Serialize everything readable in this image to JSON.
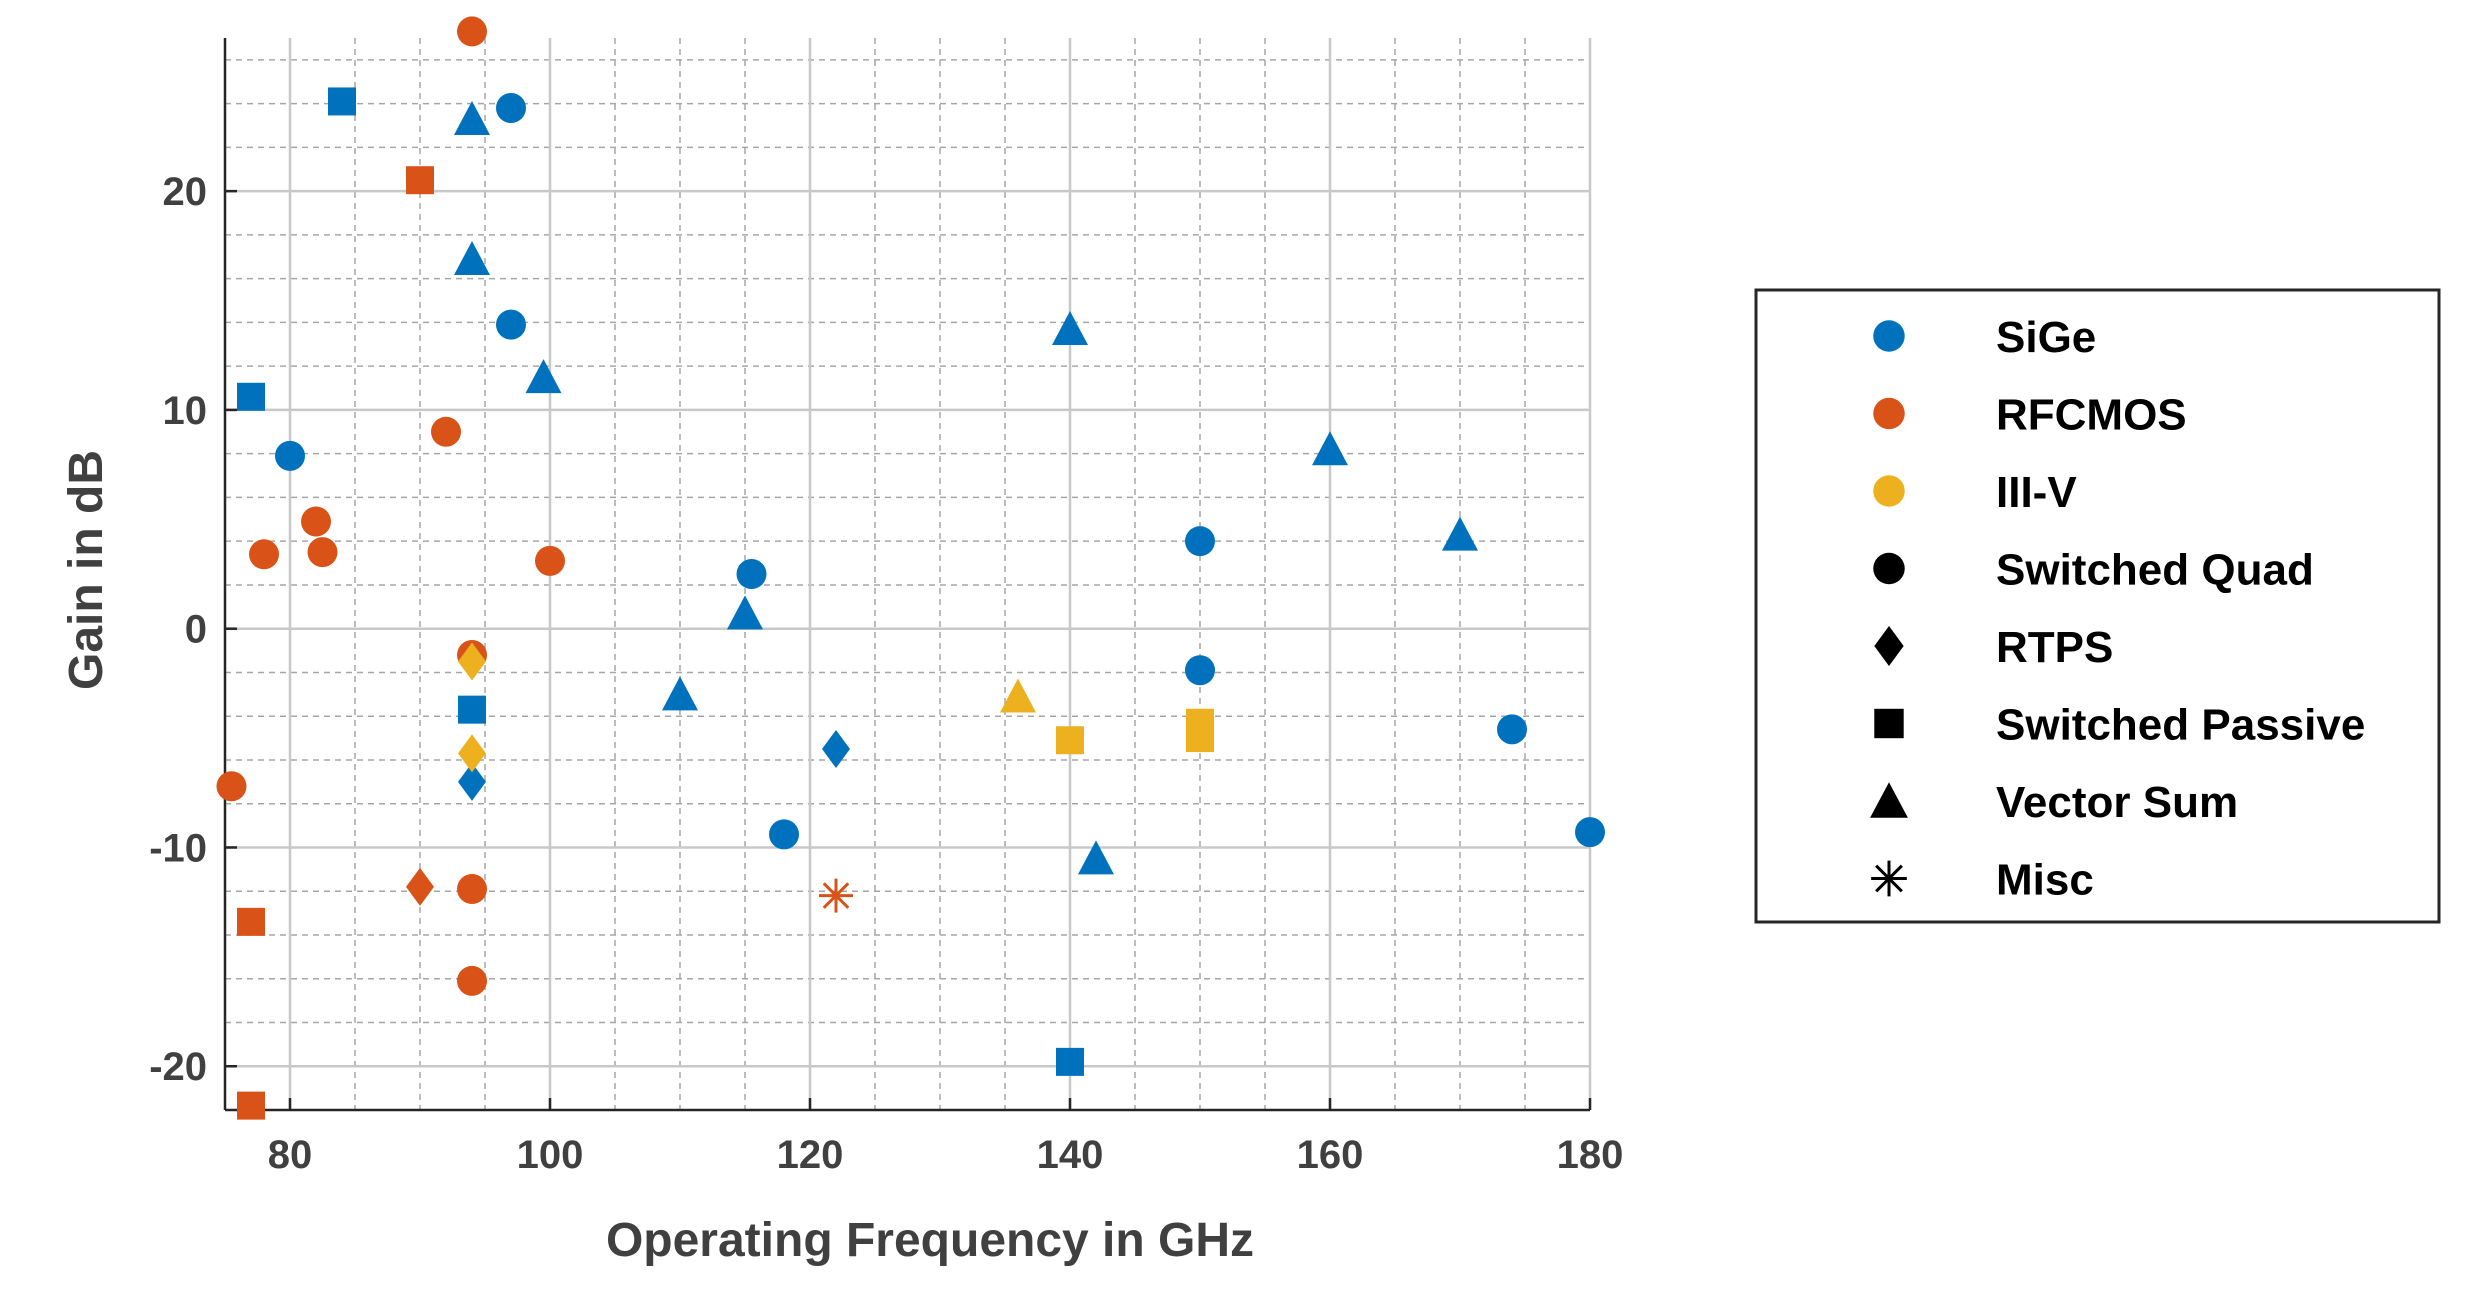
{
  "chart_data": {
    "type": "scatter",
    "xlabel": "Operating Frequency in GHz",
    "ylabel": "Gain in dB",
    "xlim": [
      75,
      180
    ],
    "ylim": [
      -22,
      27
    ],
    "xticks": [
      80,
      100,
      120,
      140,
      160,
      180
    ],
    "yticks": [
      -20,
      -10,
      0,
      10,
      20
    ],
    "xtick_labels": [
      "80",
      "100",
      "120",
      "140",
      "160",
      "180"
    ],
    "ytick_labels": [
      "-20",
      "-10",
      "0",
      "10",
      "20"
    ],
    "grid": true,
    "minor_grid": true,
    "legend_position": "right",
    "colors": {
      "SiGe": "#0072BD",
      "RFCMOS": "#D95319",
      "III-V": "#EDB120"
    },
    "legend": [
      {
        "label": "SiGe",
        "marker": "circle",
        "color": "#0072BD"
      },
      {
        "label": "RFCMOS",
        "marker": "circle",
        "color": "#D95319"
      },
      {
        "label": "III-V",
        "marker": "circle",
        "color": "#EDB120"
      },
      {
        "label": "Switched Quad",
        "marker": "circle",
        "color": "#000000"
      },
      {
        "label": "RTPS",
        "marker": "diamond",
        "color": "#000000"
      },
      {
        "label": "Switched Passive",
        "marker": "square",
        "color": "#000000"
      },
      {
        "label": "Vector Sum",
        "marker": "triangle",
        "color": "#000000"
      },
      {
        "label": "Misc",
        "marker": "asterisk",
        "color": "#000000"
      }
    ],
    "series": [
      {
        "name": "SiGe Switched Quad",
        "tech": "SiGe",
        "marker": "circle",
        "x": [
          97,
          97,
          80,
          115.5,
          118,
          150,
          150,
          174,
          180
        ],
        "y": [
          23.8,
          13.9,
          7.9,
          2.5,
          -9.4,
          4.0,
          -1.9,
          -4.6,
          -9.3
        ]
      },
      {
        "name": "SiGe RTPS",
        "tech": "SiGe",
        "marker": "diamond",
        "x": [
          94,
          122
        ],
        "y": [
          -7.0,
          -5.5
        ]
      },
      {
        "name": "SiGe Switched Passive",
        "tech": "SiGe",
        "marker": "square",
        "x": [
          84,
          77,
          94,
          140
        ],
        "y": [
          24.1,
          10.6,
          -3.7,
          -19.8
        ]
      },
      {
        "name": "SiGe Vector Sum",
        "tech": "SiGe",
        "marker": "triangle",
        "x": [
          94,
          94,
          99.5,
          140,
          160,
          170,
          115,
          110,
          142
        ],
        "y": [
          23.3,
          16.9,
          11.5,
          13.7,
          8.2,
          4.3,
          0.7,
          -3.0,
          -10.5
        ]
      },
      {
        "name": "RFCMOS Switched Quad",
        "tech": "RFCMOS",
        "marker": "circle",
        "x": [
          94,
          92,
          82,
          78,
          82.5,
          100,
          94,
          75.5,
          94,
          94
        ],
        "y": [
          27.3,
          9.0,
          4.9,
          3.4,
          3.5,
          3.1,
          -1.2,
          -7.2,
          -11.9,
          -16.1
        ]
      },
      {
        "name": "RFCMOS RTPS",
        "tech": "RFCMOS",
        "marker": "diamond",
        "x": [
          90
        ],
        "y": [
          -11.8
        ]
      },
      {
        "name": "RFCMOS Switched Passive",
        "tech": "RFCMOS",
        "marker": "square",
        "x": [
          90,
          77,
          77
        ],
        "y": [
          20.5,
          -13.4,
          -21.8
        ]
      },
      {
        "name": "RFCMOS Misc",
        "tech": "RFCMOS",
        "marker": "asterisk",
        "x": [
          122
        ],
        "y": [
          -12.2
        ]
      },
      {
        "name": "III-V RTPS",
        "tech": "III-V",
        "marker": "diamond",
        "x": [
          94,
          94
        ],
        "y": [
          -1.5,
          -5.7
        ]
      },
      {
        "name": "III-V Switched Passive",
        "tech": "III-V",
        "marker": "square",
        "x": [
          140,
          150,
          150
        ],
        "y": [
          -5.1,
          -4.3,
          -5.0
        ]
      },
      {
        "name": "III-V Vector Sum",
        "tech": "III-V",
        "marker": "triangle",
        "x": [
          136
        ],
        "y": [
          -3.1
        ]
      }
    ]
  }
}
